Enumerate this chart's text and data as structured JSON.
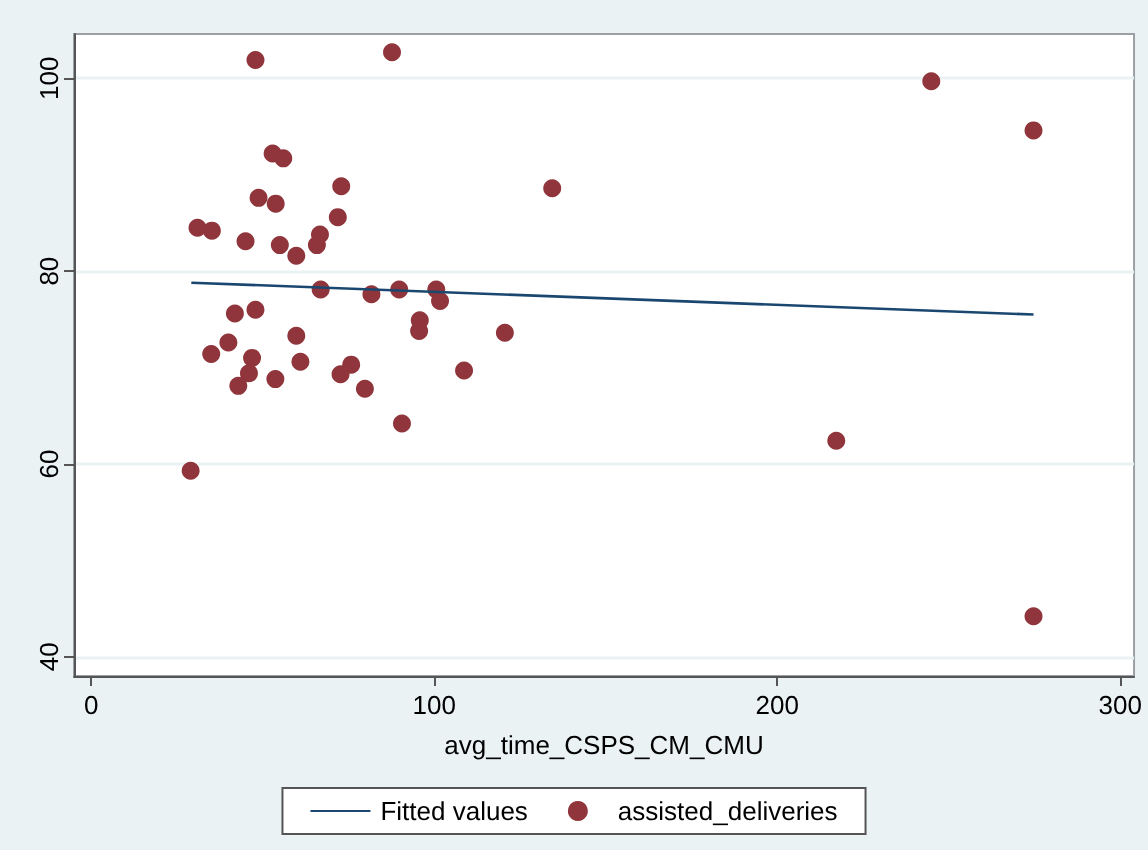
{
  "chart_data": {
    "type": "scatter",
    "xlabel": "avg_time_CSPS_CM_CMU",
    "xlim": [
      -5,
      304
    ],
    "ylim": [
      38,
      104.6
    ],
    "xticks": [
      0,
      100,
      200,
      300
    ],
    "yticks": [
      40,
      60,
      80,
      100
    ],
    "grid": "y",
    "legend": "bottom",
    "marker": "circle",
    "series": [
      {
        "name": "Fitted values",
        "type": "line",
        "color": "#1a476f",
        "line_style": "solid",
        "marker": "none",
        "x": [
          29.2,
          274.7
        ],
        "values": [
          78.8,
          75.5
        ]
      },
      {
        "name": "assisted_deliveries",
        "type": "scatter",
        "color": "#90353b",
        "x": [
          47.9,
          87.7,
          52.9,
          56.0,
          72.9,
          134.4,
          48.8,
          53.8,
          31.0,
          35.2,
          71.9,
          45.0,
          55.0,
          66.7,
          65.8,
          59.8,
          66.9,
          81.7,
          89.8,
          100.6,
          101.7,
          41.9,
          47.9,
          95.8,
          95.6,
          120.6,
          59.8,
          40.0,
          35.0,
          46.9,
          61.0,
          75.8,
          72.7,
          46.0,
          108.7,
          42.9,
          53.7,
          79.8,
          90.6,
          29.0,
          244.9,
          274.7,
          217.2,
          274.7
        ],
        "values": [
          101.9,
          102.7,
          92.2,
          91.7,
          88.8,
          88.6,
          87.6,
          87.0,
          84.5,
          84.2,
          85.6,
          83.1,
          82.7,
          83.8,
          82.7,
          81.6,
          78.1,
          77.6,
          78.1,
          78.1,
          76.9,
          75.6,
          76.0,
          74.9,
          73.8,
          73.6,
          73.3,
          72.6,
          71.4,
          71.0,
          70.6,
          70.3,
          69.3,
          69.4,
          69.7,
          68.1,
          68.8,
          67.8,
          64.2,
          59.3,
          99.7,
          94.6,
          62.4,
          44.2
        ]
      }
    ]
  }
}
